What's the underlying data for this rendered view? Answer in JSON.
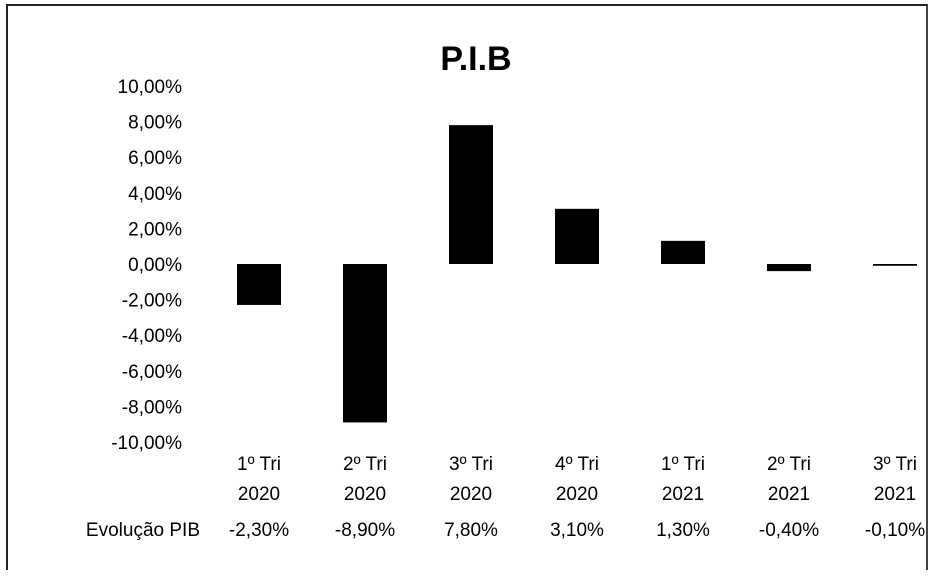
{
  "chart_data": {
    "type": "bar",
    "title": "P.I.B",
    "categories": [
      [
        "1º Tri",
        "2020"
      ],
      [
        "2º Tri",
        "2020"
      ],
      [
        "3º Tri",
        "2020"
      ],
      [
        "4º Tri",
        "2020"
      ],
      [
        "1º Tri",
        "2021"
      ],
      [
        "2º Tri",
        "2021"
      ],
      [
        "3º Tri",
        "2021"
      ]
    ],
    "series": [
      {
        "name": "Evolução PIB",
        "values": [
          -2.3,
          -8.9,
          7.8,
          3.1,
          1.3,
          -0.4,
          -0.1
        ],
        "labels": [
          "-2,30%",
          "-8,90%",
          "7,80%",
          "3,10%",
          "1,30%",
          "-0,40%",
          "-0,10%"
        ],
        "color": "#000000"
      }
    ],
    "yticks": [
      "10,00%",
      "8,00%",
      "6,00%",
      "4,00%",
      "2,00%",
      "0,00%",
      "-2,00%",
      "-4,00%",
      "-6,00%",
      "-8,00%",
      "-10,00%"
    ],
    "ylim": [
      -10,
      10
    ],
    "grid": false,
    "legend": "none",
    "data_table": true
  }
}
